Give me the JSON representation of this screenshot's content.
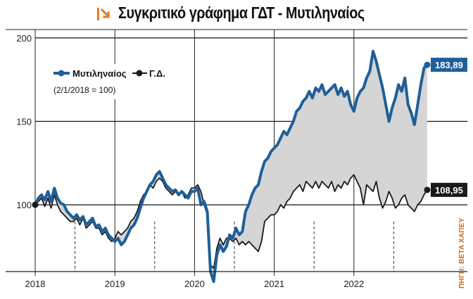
{
  "header": {
    "title": "Συγκριτικό γράφημα ΓΔΤ - Μυτιληναίος",
    "icon": "arrow-down-right-icon",
    "accent": "#e87722"
  },
  "source": "ΠΗΓΗ: BETA ΧΑΠΕΥ",
  "chart_data": {
    "type": "line",
    "title": "Συγκριτικό γράφημα ΓΔΤ - Μυτιληναίος",
    "note": "(2/1/2018 = 100)",
    "xlabel": "",
    "ylabel": "",
    "xlim": [
      2018.0,
      2023.0
    ],
    "ylim": [
      60,
      205
    ],
    "x_ticks": [
      2018,
      2019,
      2020,
      2021,
      2022
    ],
    "x_tick_labels": [
      "2018",
      "2019",
      "2020",
      "2021",
      "2022"
    ],
    "y_ticks": [
      100,
      150,
      200
    ],
    "y_tick_labels": [
      "100",
      "150",
      "200"
    ],
    "grid": "horizontal",
    "legend_position": "top-left",
    "series": [
      {
        "name": "Μυτιληναίος",
        "color": "#1f5f99",
        "end_label": "183,89",
        "x": [
          2018.0,
          2018.04,
          2018.08,
          2018.12,
          2018.16,
          2018.2,
          2018.24,
          2018.28,
          2018.32,
          2018.36,
          2018.4,
          2018.44,
          2018.48,
          2018.52,
          2018.56,
          2018.6,
          2018.64,
          2018.68,
          2018.72,
          2018.76,
          2018.8,
          2018.84,
          2018.88,
          2018.92,
          2018.96,
          2019.0,
          2019.04,
          2019.08,
          2019.12,
          2019.16,
          2019.2,
          2019.24,
          2019.28,
          2019.32,
          2019.36,
          2019.4,
          2019.44,
          2019.48,
          2019.52,
          2019.56,
          2019.6,
          2019.64,
          2019.68,
          2019.72,
          2019.76,
          2019.8,
          2019.84,
          2019.88,
          2019.92,
          2019.96,
          2020.0,
          2020.04,
          2020.08,
          2020.12,
          2020.16,
          2020.2,
          2020.24,
          2020.28,
          2020.32,
          2020.36,
          2020.4,
          2020.44,
          2020.48,
          2020.52,
          2020.56,
          2020.6,
          2020.64,
          2020.68,
          2020.72,
          2020.76,
          2020.8,
          2020.84,
          2020.88,
          2020.92,
          2020.96,
          2021.0,
          2021.04,
          2021.08,
          2021.12,
          2021.16,
          2021.2,
          2021.24,
          2021.28,
          2021.32,
          2021.36,
          2021.4,
          2021.44,
          2021.48,
          2021.52,
          2021.56,
          2021.6,
          2021.64,
          2021.68,
          2021.72,
          2021.76,
          2021.8,
          2021.84,
          2021.88,
          2021.92,
          2021.96,
          2022.0,
          2022.04,
          2022.08,
          2022.12,
          2022.16,
          2022.2,
          2022.24,
          2022.28,
          2022.32,
          2022.36,
          2022.4,
          2022.44,
          2022.48,
          2022.52,
          2022.56,
          2022.6,
          2022.64,
          2022.68,
          2022.72,
          2022.76,
          2022.8,
          2022.84,
          2022.88,
          2022.92
        ],
        "values": [
          100,
          104,
          106,
          103,
          108,
          102,
          110,
          104,
          101,
          100,
          96,
          94,
          92,
          94,
          91,
          93,
          88,
          90,
          92,
          87,
          88,
          84,
          86,
          82,
          80,
          78,
          80,
          76,
          78,
          82,
          86,
          88,
          92,
          98,
          104,
          108,
          112,
          114,
          118,
          120,
          116,
          112,
          110,
          108,
          109,
          106,
          108,
          106,
          104,
          108,
          108,
          110,
          100,
          102,
          96,
          60,
          54,
          70,
          76,
          72,
          75,
          82,
          80,
          86,
          82,
          84,
          96,
          100,
          106,
          110,
          112,
          120,
          126,
          128,
          132,
          134,
          136,
          140,
          144,
          142,
          146,
          150,
          156,
          158,
          162,
          164,
          168,
          164,
          170,
          168,
          172,
          166,
          168,
          170,
          172,
          166,
          170,
          165,
          168,
          160,
          156,
          164,
          168,
          170,
          176,
          180,
          192,
          186,
          178,
          170,
          160,
          150,
          158,
          164,
          172,
          168,
          176,
          160,
          155,
          148,
          160,
          172,
          182,
          183.89
        ]
      },
      {
        "name": "Γ.Δ.",
        "color": "#1a1a1a",
        "end_label": "108,95",
        "x": [
          2018.0,
          2018.04,
          2018.08,
          2018.12,
          2018.16,
          2018.2,
          2018.24,
          2018.28,
          2018.32,
          2018.36,
          2018.4,
          2018.44,
          2018.48,
          2018.52,
          2018.56,
          2018.6,
          2018.64,
          2018.68,
          2018.72,
          2018.76,
          2018.8,
          2018.84,
          2018.88,
          2018.92,
          2018.96,
          2019.0,
          2019.04,
          2019.08,
          2019.12,
          2019.16,
          2019.2,
          2019.24,
          2019.28,
          2019.32,
          2019.36,
          2019.4,
          2019.44,
          2019.48,
          2019.52,
          2019.56,
          2019.6,
          2019.64,
          2019.68,
          2019.72,
          2019.76,
          2019.8,
          2019.84,
          2019.88,
          2019.92,
          2019.96,
          2020.0,
          2020.04,
          2020.08,
          2020.12,
          2020.16,
          2020.2,
          2020.24,
          2020.28,
          2020.32,
          2020.36,
          2020.4,
          2020.44,
          2020.48,
          2020.52,
          2020.56,
          2020.6,
          2020.64,
          2020.68,
          2020.72,
          2020.76,
          2020.8,
          2020.84,
          2020.88,
          2020.92,
          2020.96,
          2021.0,
          2021.04,
          2021.08,
          2021.12,
          2021.16,
          2021.2,
          2021.24,
          2021.28,
          2021.32,
          2021.36,
          2021.4,
          2021.44,
          2021.48,
          2021.52,
          2021.56,
          2021.6,
          2021.64,
          2021.68,
          2021.72,
          2021.76,
          2021.8,
          2021.84,
          2021.88,
          2021.92,
          2021.96,
          2022.0,
          2022.04,
          2022.08,
          2022.12,
          2022.16,
          2022.2,
          2022.24,
          2022.28,
          2022.32,
          2022.36,
          2022.4,
          2022.44,
          2022.48,
          2022.52,
          2022.56,
          2022.6,
          2022.64,
          2022.68,
          2022.72,
          2022.76,
          2022.8,
          2022.84,
          2022.88,
          2022.92
        ],
        "values": [
          100,
          102,
          104,
          99,
          104,
          98,
          106,
          100,
          96,
          94,
          92,
          90,
          90,
          92,
          88,
          92,
          86,
          88,
          90,
          86,
          86,
          82,
          84,
          80,
          78,
          80,
          84,
          82,
          84,
          86,
          90,
          92,
          96,
          102,
          106,
          108,
          112,
          110,
          114,
          116,
          114,
          110,
          108,
          106,
          108,
          106,
          108,
          104,
          106,
          110,
          110,
          112,
          108,
          100,
          94,
          64,
          62,
          74,
          80,
          76,
          80,
          80,
          78,
          80,
          76,
          78,
          76,
          78,
          76,
          74,
          72,
          78,
          90,
          92,
          94,
          94,
          96,
          100,
          98,
          102,
          104,
          108,
          110,
          112,
          108,
          114,
          112,
          110,
          114,
          110,
          114,
          112,
          110,
          114,
          108,
          112,
          110,
          114,
          112,
          116,
          118,
          114,
          110,
          100,
          112,
          110,
          108,
          114,
          104,
          98,
          102,
          108,
          104,
          98,
          100,
          104,
          106,
          100,
          98,
          96,
          100,
          102,
          106,
          108.95
        ]
      }
    ]
  }
}
